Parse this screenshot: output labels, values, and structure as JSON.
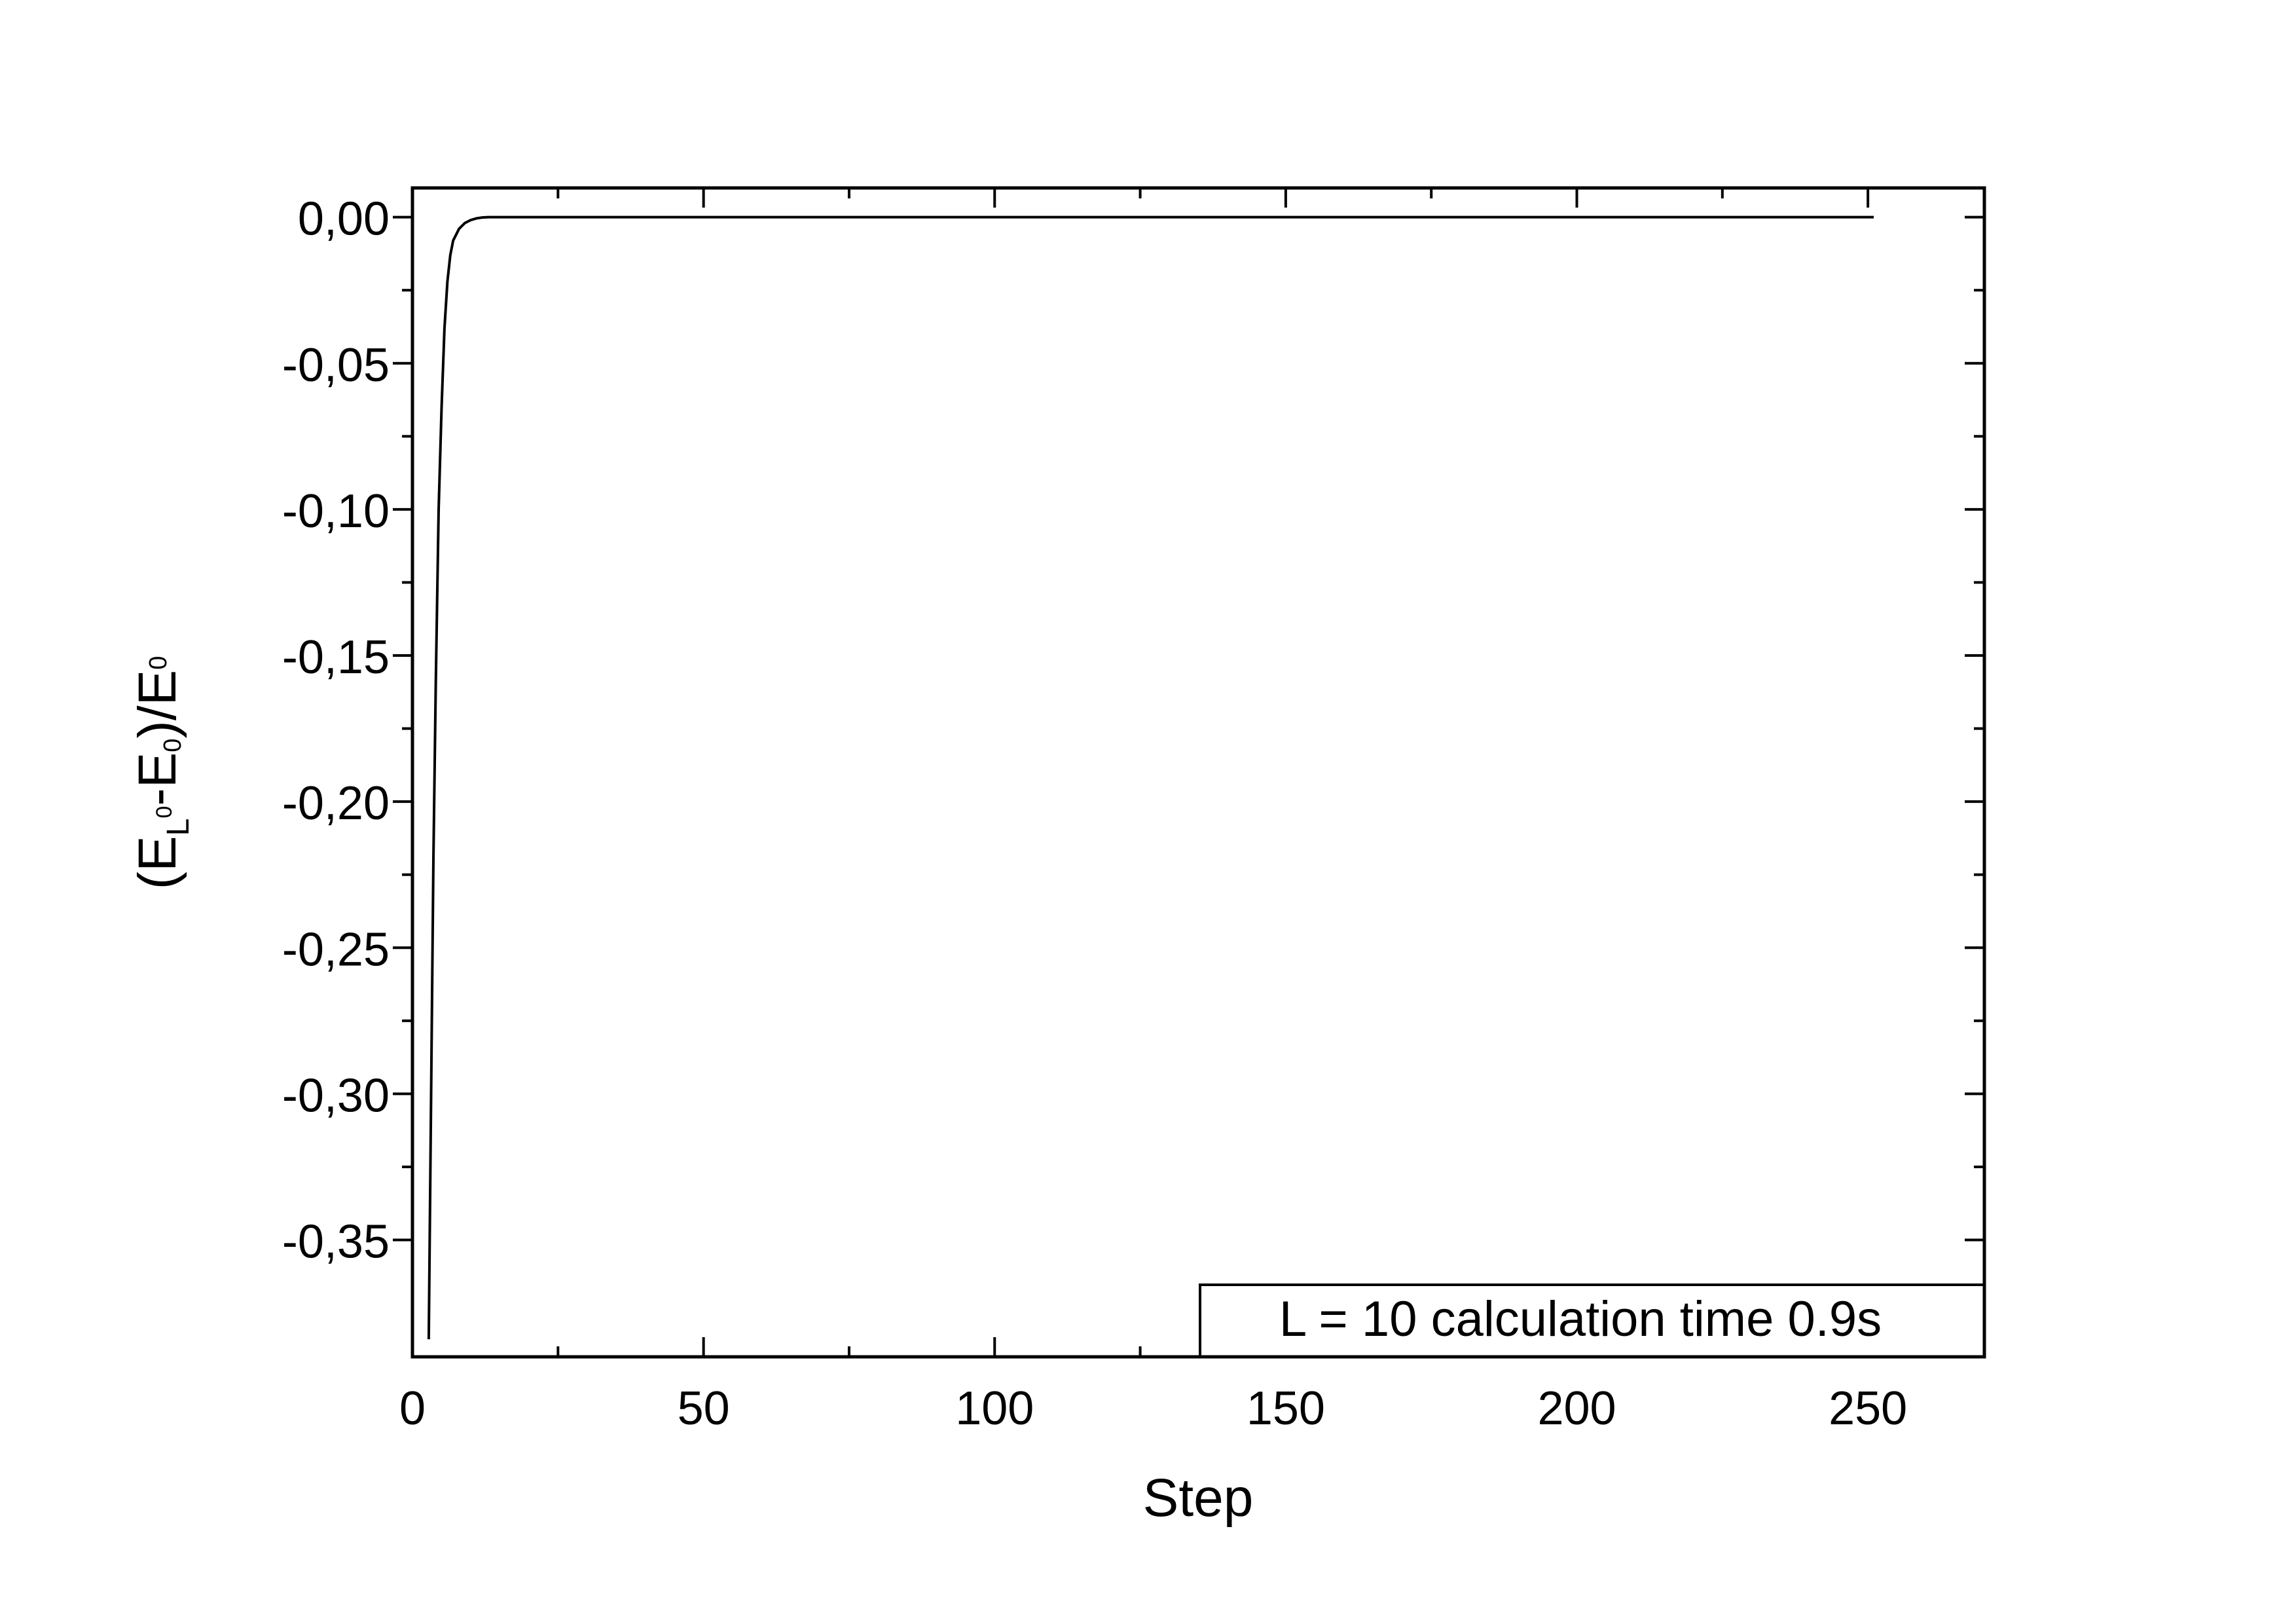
{
  "chart_data": {
    "type": "line",
    "title": "",
    "xlabel": "Step",
    "ylabel": {
      "open": "(E",
      "sub1": "L",
      "sup1": "0",
      "mid": "-E",
      "sub2": "0",
      "close": ")/E",
      "sub3": "0"
    },
    "xlim": [
      0,
      270
    ],
    "ylim": [
      -0.39,
      0.01
    ],
    "xticks": [
      0,
      50,
      100,
      150,
      200,
      250
    ],
    "xtick_labels": [
      "0",
      "50",
      "100",
      "150",
      "200",
      "250"
    ],
    "yticks": [
      0.0,
      -0.05,
      -0.1,
      -0.15,
      -0.2,
      -0.25,
      -0.3,
      -0.35
    ],
    "ytick_labels": [
      "0,00",
      "-0,05",
      "-0,10",
      "-0,15",
      "-0,20",
      "-0,25",
      "-0,30",
      "-0,35"
    ],
    "grid": false,
    "series": [
      {
        "color": "#000000",
        "x": [
          2.8,
          3.2,
          3.6,
          4.0,
          4.5,
          5.0,
          5.5,
          6.0,
          6.5,
          7.0,
          8.0,
          9.0,
          10.0,
          11.0,
          12.0,
          13.0,
          15.0,
          20.0,
          30.0,
          50.0,
          100.0,
          150.0,
          200.0,
          251.0
        ],
        "y": [
          -0.384,
          -0.3,
          -0.22,
          -0.16,
          -0.1,
          -0.065,
          -0.038,
          -0.022,
          -0.013,
          -0.008,
          -0.004,
          -0.002,
          -0.001,
          -0.0004,
          -0.0001,
          0.0,
          0.0,
          0.0,
          0.0,
          0.0,
          0.0,
          0.0,
          0.0,
          0.0
        ]
      }
    ],
    "annotation": "L = 10 calculation time 0.9s"
  }
}
